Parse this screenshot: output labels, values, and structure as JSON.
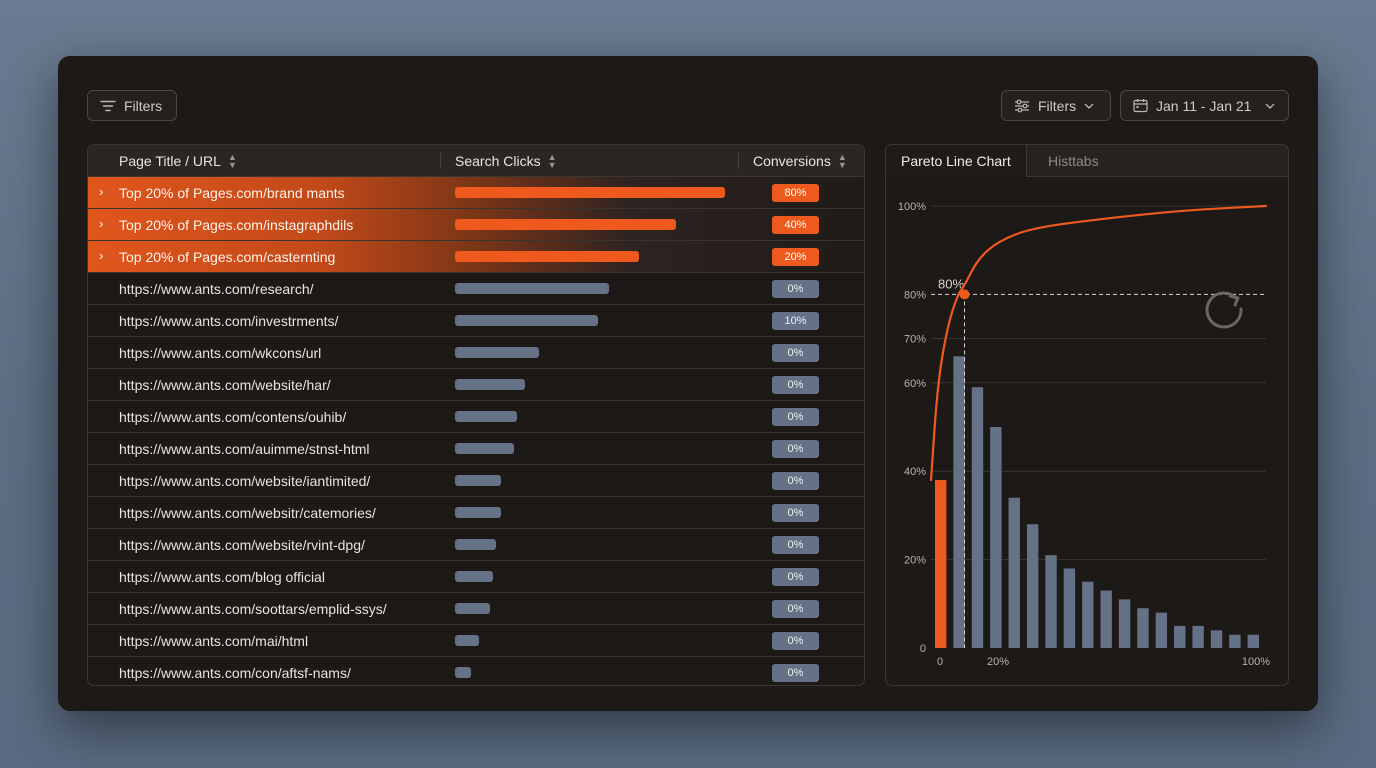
{
  "toolbar": {
    "filters_left_label": "Filters",
    "filters_right_label": "Filters",
    "date_range_label": "Jan 11 - Jan 21"
  },
  "table": {
    "columns": [
      "Page Title / URL",
      "Search Clicks",
      "Conversions"
    ],
    "rows": [
      {
        "title": "Top 20% of Pages.com/brand mants",
        "clicks_fraction": 1.0,
        "conversions": "80%",
        "highlight": true
      },
      {
        "title": "Top 20% of Pages.com/instagraphdils",
        "clicks_fraction": 0.82,
        "conversions": "40%",
        "highlight": true
      },
      {
        "title": "Top 20% of Pages.com/casternting",
        "clicks_fraction": 0.68,
        "conversions": "20%",
        "highlight": true
      },
      {
        "title": "https://www.ants.com/research/",
        "clicks_fraction": 0.57,
        "conversions": "0%",
        "highlight": false
      },
      {
        "title": "https://www.ants.com/investrments/",
        "clicks_fraction": 0.53,
        "conversions": "10%",
        "highlight": false
      },
      {
        "title": "https://www.ants.com/wkcons/url",
        "clicks_fraction": 0.31,
        "conversions": "0%",
        "highlight": false
      },
      {
        "title": "https://www.ants.com/website/har/",
        "clicks_fraction": 0.26,
        "conversions": "0%",
        "highlight": false
      },
      {
        "title": "https://www.ants.com/contens/ouhib/",
        "clicks_fraction": 0.23,
        "conversions": "0%",
        "highlight": false
      },
      {
        "title": "https://www.ants.com/auimme/stnst-html",
        "clicks_fraction": 0.22,
        "conversions": "0%",
        "highlight": false
      },
      {
        "title": "https://www.ants.com/website/iantimited/",
        "clicks_fraction": 0.17,
        "conversions": "0%",
        "highlight": false
      },
      {
        "title": "https://www.ants.com/websitr/catemories/",
        "clicks_fraction": 0.17,
        "conversions": "0%",
        "highlight": false
      },
      {
        "title": "https://www.ants.com/website/rvint-dpg/",
        "clicks_fraction": 0.15,
        "conversions": "0%",
        "highlight": false
      },
      {
        "title": "https://www.ants.com/blog official",
        "clicks_fraction": 0.14,
        "conversions": "0%",
        "highlight": false
      },
      {
        "title": "https://www.ants.com/soottars/emplid-ssys/",
        "clicks_fraction": 0.13,
        "conversions": "0%",
        "highlight": false
      },
      {
        "title": "https://www.ants.com/mai/html",
        "clicks_fraction": 0.09,
        "conversions": "0%",
        "highlight": false
      },
      {
        "title": "https://www.ants.com/con/aftsf-nams/",
        "clicks_fraction": 0.06,
        "conversions": "0%",
        "highlight": false
      }
    ]
  },
  "chart_tabs": [
    "Pareto Line Chart",
    "Histtabs"
  ],
  "chart_data": {
    "type": "bar",
    "y_tick_labels": [
      "0",
      "20%",
      "40%",
      "60%",
      "70%",
      "80%",
      "100%"
    ],
    "y_tick_values": [
      0,
      20,
      40,
      60,
      70,
      80,
      100
    ],
    "x_tick_labels": [
      "0",
      "20%",
      "100%"
    ],
    "x_tick_values": [
      0,
      20,
      100
    ],
    "bars": [
      38,
      66,
      59,
      50,
      34,
      28,
      21,
      18,
      15,
      13,
      11,
      9,
      8,
      5,
      5,
      4,
      3,
      3
    ],
    "highlight_bar_index": 0,
    "pareto_line": [
      [
        0,
        38
      ],
      [
        2,
        60
      ],
      [
        5,
        73
      ],
      [
        8,
        80
      ],
      [
        10,
        82
      ],
      [
        14,
        88
      ],
      [
        20,
        92
      ],
      [
        30,
        95
      ],
      [
        50,
        97
      ],
      [
        75,
        99
      ],
      [
        100,
        100
      ]
    ],
    "marker": {
      "x": 10,
      "y": 80,
      "label": "80%"
    },
    "grid": true,
    "colors": {
      "bars": "#647186",
      "highlight": "#ee5a1e",
      "line": "#ee5a1e"
    }
  },
  "icons": [
    "filter-lines-icon",
    "sliders-icon",
    "calendar-icon",
    "chevron-down-icon",
    "sort-icon",
    "chevron-right-icon",
    "refresh-icon"
  ]
}
